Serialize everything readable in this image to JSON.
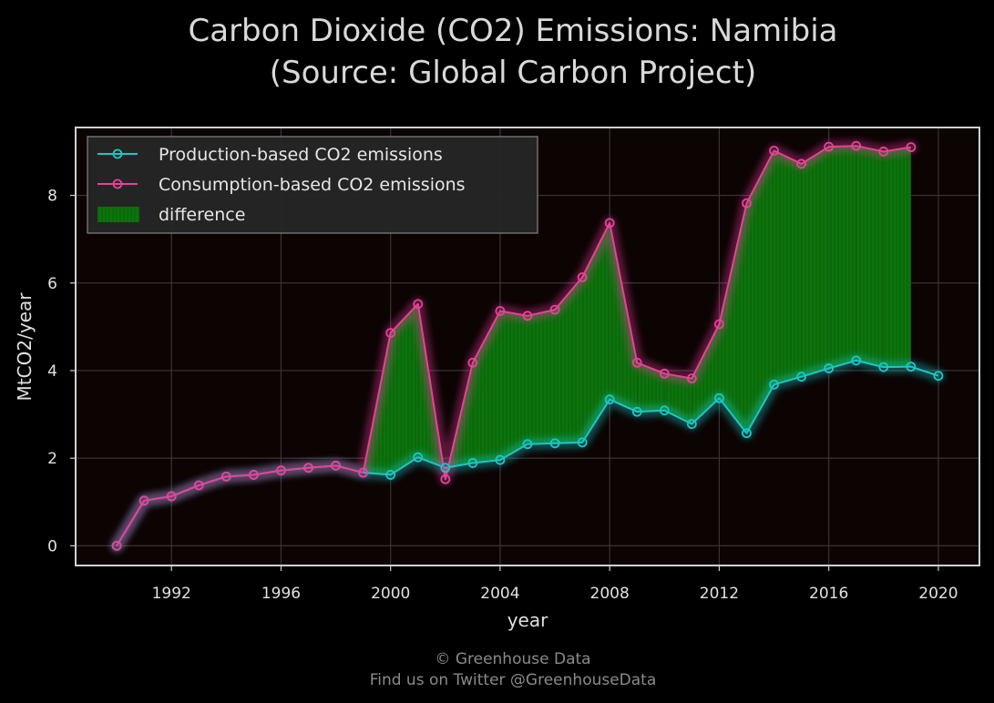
{
  "chart_data": {
    "type": "line",
    "title_line1": "Carbon Dioxide (CO2) Emissions: Namibia",
    "title_line2": "(Source: Global Carbon Project)",
    "xlabel": "year",
    "ylabel": "MtCO2/year",
    "xlim": [
      1988.5,
      2021.5
    ],
    "ylim": [
      -0.45,
      9.55
    ],
    "xticks": [
      1992,
      1996,
      2000,
      2004,
      2008,
      2012,
      2016,
      2020
    ],
    "yticks": [
      0,
      2,
      4,
      6,
      8
    ],
    "grid": true,
    "legend_position": "top-left",
    "series": [
      {
        "name": "Production-based CO2 emissions",
        "color": "#18c8c8",
        "x": [
          1990,
          1991,
          1992,
          1993,
          1994,
          1995,
          1996,
          1997,
          1998,
          1999,
          2000,
          2001,
          2002,
          2003,
          2004,
          2005,
          2006,
          2007,
          2008,
          2009,
          2010,
          2011,
          2012,
          2013,
          2014,
          2015,
          2016,
          2017,
          2018,
          2019,
          2020
        ],
        "y": [
          0.0,
          1.03,
          1.13,
          1.38,
          1.58,
          1.62,
          1.72,
          1.78,
          1.83,
          1.67,
          1.62,
          2.02,
          1.78,
          1.89,
          1.96,
          2.32,
          2.34,
          2.36,
          3.34,
          3.06,
          3.09,
          2.78,
          3.37,
          2.57,
          3.68,
          3.86,
          4.05,
          4.23,
          4.08,
          4.09,
          3.88
        ]
      },
      {
        "name": "Consumption-based CO2 emissions",
        "color": "#e8409a",
        "x": [
          1990,
          1991,
          1992,
          1993,
          1994,
          1995,
          1996,
          1997,
          1998,
          1999,
          2000,
          2001,
          2002,
          2003,
          2004,
          2005,
          2006,
          2007,
          2008,
          2009,
          2010,
          2011,
          2012,
          2013,
          2014,
          2015,
          2016,
          2017,
          2018,
          2019
        ],
        "y": [
          0.0,
          1.03,
          1.13,
          1.38,
          1.58,
          1.62,
          1.72,
          1.78,
          1.83,
          1.67,
          4.86,
          5.52,
          1.52,
          4.18,
          5.36,
          5.25,
          5.39,
          6.13,
          7.37,
          4.18,
          3.93,
          3.82,
          5.06,
          7.82,
          9.02,
          8.72,
          9.11,
          9.13,
          9.0,
          9.1
        ]
      }
    ],
    "difference_label": "difference",
    "difference_color": "#0b6a0b"
  },
  "footer": {
    "line1": "© Greenhouse Data",
    "line2": "Find us on Twitter @GreenhouseData"
  }
}
